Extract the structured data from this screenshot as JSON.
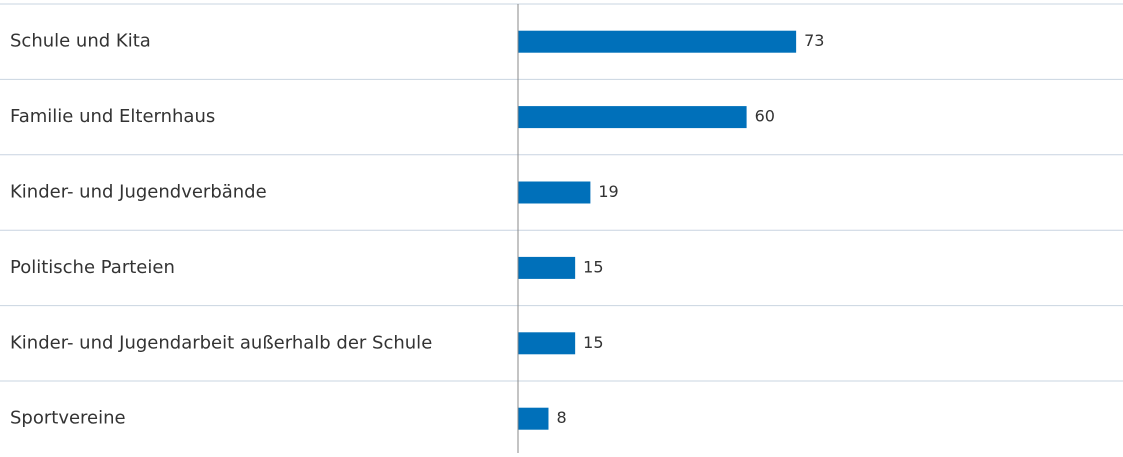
{
  "chart_data": {
    "type": "bar",
    "orientation": "horizontal",
    "categories": [
      "Schule und Kita",
      "Familie und Elternhaus",
      "Kinder- und Jugendverbände",
      "Politische Parteien",
      "Kinder- und Jugendarbeit außerhalb der Schule",
      "Sportvereine"
    ],
    "values": [
      73,
      60,
      19,
      15,
      15,
      8
    ],
    "color": "#0070ba"
  }
}
